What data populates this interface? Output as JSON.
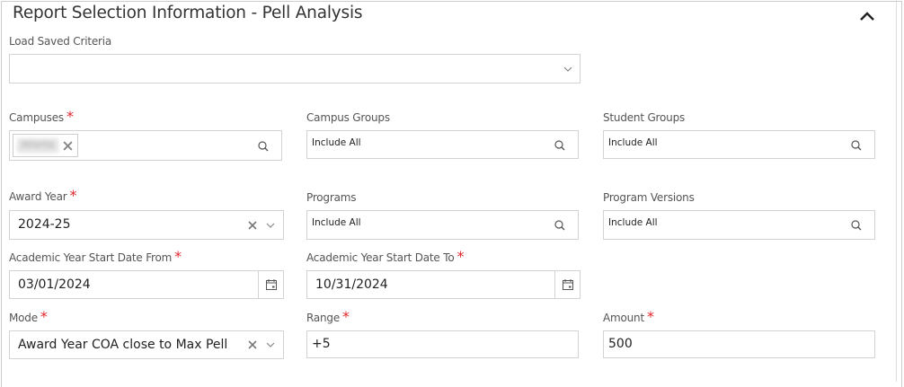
{
  "title": "Report Selection Information - Pell Analysis",
  "load_saved": {
    "label": "Load Saved Criteria",
    "value": ""
  },
  "campuses": {
    "label": "Campuses",
    "required": "*",
    "chip": "Atlanta"
  },
  "campus_groups": {
    "label": "Campus Groups",
    "value": "Include All"
  },
  "student_groups": {
    "label": "Student Groups",
    "value": "Include All"
  },
  "award_year": {
    "label": "Award Year",
    "required": "*",
    "value": "2024-25"
  },
  "programs": {
    "label": "Programs",
    "value": "Include All"
  },
  "program_versions": {
    "label": "Program Versions",
    "value": "Include All"
  },
  "start_from": {
    "label": "Academic Year Start Date From",
    "required": "*",
    "value": "03/01/2024"
  },
  "start_to": {
    "label": "Academic Year Start Date To",
    "required": "*",
    "value": "10/31/2024"
  },
  "mode": {
    "label": "Mode",
    "required": "*",
    "value": "Award Year COA close to Max Pell"
  },
  "range": {
    "label": "Range",
    "required": "*",
    "value": "+5"
  },
  "amount": {
    "label": "Amount",
    "required": "*",
    "value": "500"
  },
  "colors": {
    "required": "#e0262d",
    "border": "#d3d3d3"
  }
}
